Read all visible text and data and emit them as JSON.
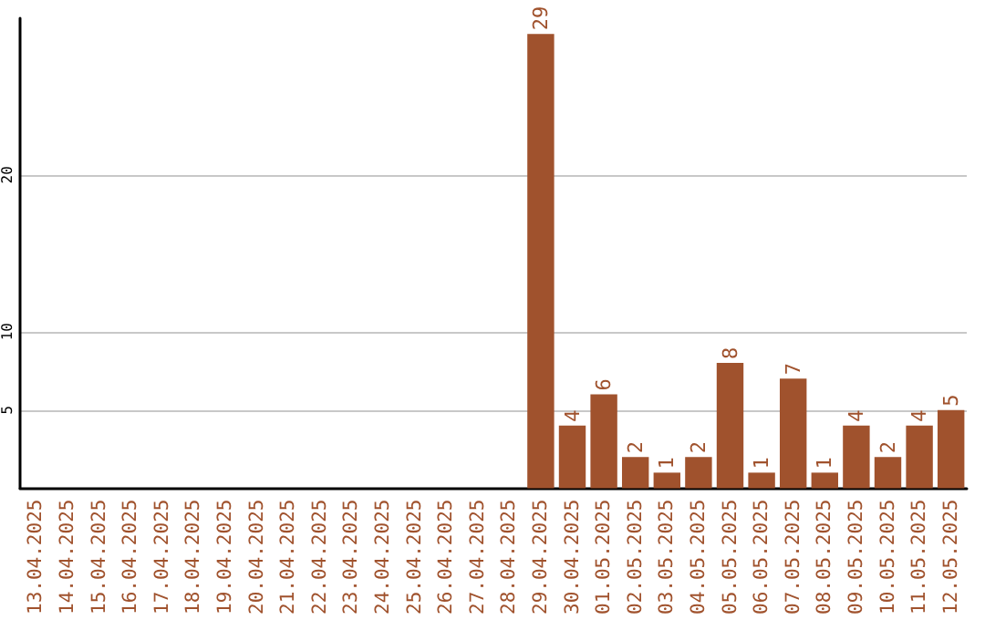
{
  "chart_data": {
    "type": "bar",
    "categories": [
      "13.04.2025",
      "14.04.2025",
      "15.04.2025",
      "16.04.2025",
      "17.04.2025",
      "18.04.2025",
      "19.04.2025",
      "20.04.2025",
      "21.04.2025",
      "22.04.2025",
      "23.04.2025",
      "24.04.2025",
      "25.04.2025",
      "26.04.2025",
      "27.04.2025",
      "28.04.2025",
      "29.04.2025",
      "30.04.2025",
      "01.05.2025",
      "02.05.2025",
      "03.05.2025",
      "04.05.2025",
      "05.05.2025",
      "06.05.2025",
      "07.05.2025",
      "08.05.2025",
      "09.05.2025",
      "10.05.2025",
      "11.05.2025",
      "12.05.2025"
    ],
    "values": [
      0,
      0,
      0,
      0,
      0,
      0,
      0,
      0,
      0,
      0,
      0,
      0,
      0,
      0,
      0,
      0,
      29,
      4,
      6,
      2,
      1,
      2,
      8,
      1,
      7,
      1,
      4,
      2,
      4,
      5
    ],
    "value_labels": [
      null,
      null,
      null,
      null,
      null,
      null,
      null,
      null,
      null,
      null,
      null,
      null,
      null,
      null,
      null,
      null,
      "29",
      "4",
      "6",
      "2",
      "1",
      "2",
      "8",
      "1",
      "7",
      "1",
      "4",
      "2",
      "4",
      "5"
    ],
    "color": "#a0522d",
    "ylim": [
      0,
      30
    ],
    "yticks": [
      5,
      10,
      20
    ],
    "grid": "y"
  }
}
